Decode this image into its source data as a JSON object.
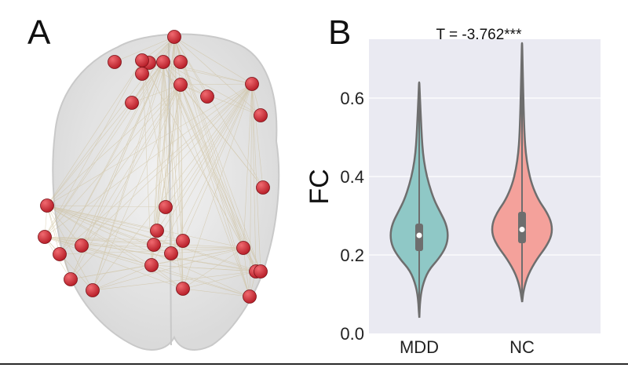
{
  "panels": {
    "a_label": "A",
    "b_label": "B"
  },
  "colors": {
    "plot_background": "#eaeaf2",
    "grid": "#ffffff",
    "mdd_fill": "#8fc8c6",
    "nc_fill": "#f4a19b",
    "outline": "#6e6e6e",
    "node": "#b8202a",
    "edge": "#c9b98f",
    "brain": "#d4d4d4"
  },
  "chart_data": {
    "type": "violin",
    "title": "T = -3.762***",
    "xlabel": "",
    "ylabel": "FC",
    "categories": [
      "MDD",
      "NC"
    ],
    "ylim": [
      0.0,
      0.75
    ],
    "yticks": [
      0.0,
      0.2,
      0.4,
      0.6
    ],
    "ytick_labels": [
      "0.0",
      "0.2",
      "0.4",
      "0.6"
    ],
    "grid": true,
    "series": [
      {
        "category": "MDD",
        "min": 0.04,
        "q1": 0.21,
        "median": 0.25,
        "q3": 0.28,
        "max": 0.64,
        "density": [
          [
            0.04,
            0.002
          ],
          [
            0.08,
            0.01
          ],
          [
            0.12,
            0.04
          ],
          [
            0.16,
            0.12
          ],
          [
            0.19,
            0.26
          ],
          [
            0.22,
            0.36
          ],
          [
            0.25,
            0.39
          ],
          [
            0.28,
            0.36
          ],
          [
            0.31,
            0.28
          ],
          [
            0.34,
            0.2
          ],
          [
            0.38,
            0.13
          ],
          [
            0.42,
            0.08
          ],
          [
            0.46,
            0.05
          ],
          [
            0.5,
            0.035
          ],
          [
            0.54,
            0.025
          ],
          [
            0.58,
            0.015
          ],
          [
            0.62,
            0.006
          ],
          [
            0.64,
            0.002
          ]
        ]
      },
      {
        "category": "NC",
        "min": 0.08,
        "q1": 0.23,
        "median": 0.265,
        "q3": 0.31,
        "max": 0.74,
        "density": [
          [
            0.08,
            0.002
          ],
          [
            0.11,
            0.02
          ],
          [
            0.15,
            0.08
          ],
          [
            0.19,
            0.2
          ],
          [
            0.22,
            0.32
          ],
          [
            0.25,
            0.4
          ],
          [
            0.28,
            0.4
          ],
          [
            0.31,
            0.33
          ],
          [
            0.34,
            0.22
          ],
          [
            0.38,
            0.13
          ],
          [
            0.42,
            0.08
          ],
          [
            0.46,
            0.05
          ],
          [
            0.5,
            0.035
          ],
          [
            0.55,
            0.025
          ],
          [
            0.6,
            0.018
          ],
          [
            0.65,
            0.012
          ],
          [
            0.7,
            0.006
          ],
          [
            0.74,
            0.002
          ]
        ]
      }
    ]
  }
}
